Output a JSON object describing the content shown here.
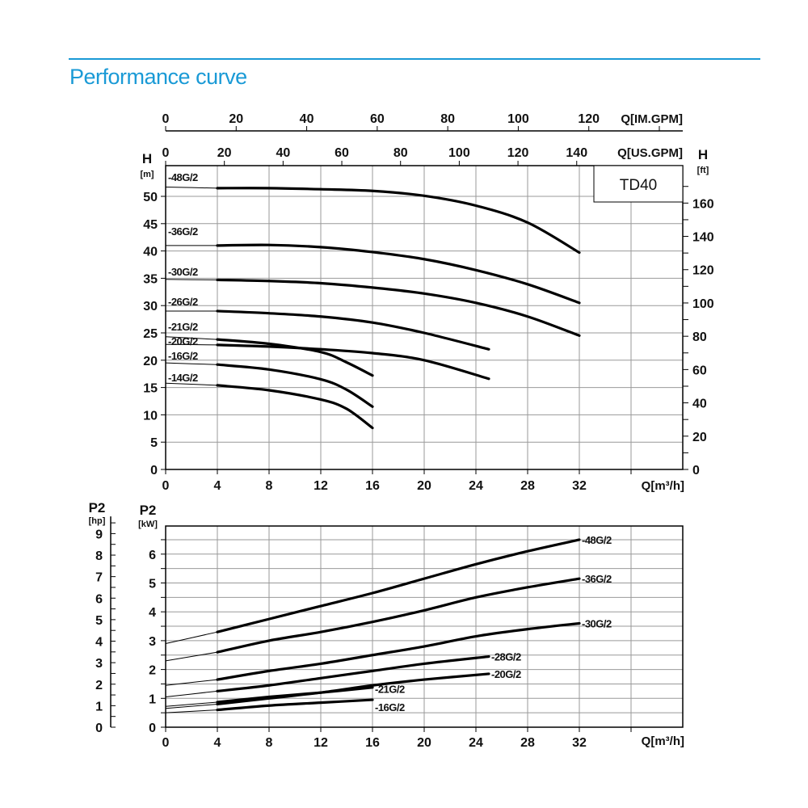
{
  "page": {
    "title": "Performance curve",
    "accent_color": "#1a9ad6"
  },
  "chart_data": [
    {
      "type": "line",
      "title": "TD40",
      "xlabel": "Q[m³/h]",
      "ylabel": "H",
      "ylabel_unit": "[m]",
      "y2label": "H",
      "y2label_unit": "[ft]",
      "xlim": [
        0,
        40
      ],
      "ylim": [
        0,
        55
      ],
      "x_ticks": [
        0,
        4,
        8,
        12,
        16,
        20,
        24,
        28,
        32
      ],
      "y_ticks": [
        0,
        5,
        10,
        15,
        20,
        25,
        30,
        35,
        40,
        45,
        50
      ],
      "y2_ticks": [
        0,
        20,
        40,
        60,
        80,
        100,
        120,
        140,
        160
      ],
      "top_axis_us": {
        "label": "Q[US.GPM]",
        "ticks": [
          0,
          20,
          40,
          60,
          80,
          100,
          120,
          140
        ]
      },
      "top_axis_im": {
        "label": "Q[IM.GPM]",
        "ticks": [
          0,
          20,
          40,
          60,
          80,
          100,
          120
        ]
      },
      "grid": true,
      "series": [
        {
          "name": "-48G/2",
          "x": [
            0,
            4,
            8,
            12,
            16,
            20,
            24,
            28,
            32
          ],
          "y": [
            51.7,
            51.5,
            51.5,
            51.3,
            51.0,
            50.1,
            48.3,
            45.2,
            39.7
          ]
        },
        {
          "name": "-36G/2",
          "x": [
            0,
            4,
            8,
            12,
            16,
            20,
            24,
            28,
            32
          ],
          "y": [
            41.0,
            41.0,
            41.1,
            40.7,
            39.8,
            38.5,
            36.5,
            33.9,
            30.5
          ]
        },
        {
          "name": "-30G/2",
          "x": [
            0,
            4,
            8,
            12,
            16,
            20,
            24,
            28,
            32
          ],
          "y": [
            34.8,
            34.7,
            34.5,
            34.1,
            33.3,
            32.2,
            30.5,
            28.0,
            24.5
          ]
        },
        {
          "name": "-26G/2",
          "x": [
            0,
            4,
            8,
            12,
            16,
            20,
            25
          ],
          "y": [
            29.0,
            29.0,
            28.6,
            28.0,
            26.9,
            25.0,
            22.0
          ]
        },
        {
          "name": "-21G/2",
          "x": [
            0,
            4,
            8,
            12,
            14,
            16
          ],
          "y": [
            24.3,
            23.8,
            23.0,
            21.5,
            19.6,
            17.2
          ]
        },
        {
          "name": "-20G/2",
          "x": [
            0,
            4,
            8,
            12,
            16,
            20,
            25
          ],
          "y": [
            22.9,
            22.8,
            22.5,
            22.0,
            21.3,
            20.0,
            16.6
          ]
        },
        {
          "name": "-16G/2",
          "x": [
            0,
            4,
            8,
            12,
            14,
            16
          ],
          "y": [
            19.5,
            19.2,
            18.3,
            16.5,
            14.6,
            11.5
          ]
        },
        {
          "name": "-14G/2",
          "x": [
            0,
            4,
            8,
            12,
            14,
            16
          ],
          "y": [
            15.8,
            15.4,
            14.5,
            12.8,
            11.1,
            7.6
          ]
        }
      ]
    },
    {
      "type": "line",
      "xlabel": "Q[m³/h]",
      "ylabel": "P2",
      "ylabel_unit": "[kW]",
      "y2label": "P2",
      "y2label_unit": "[hp]",
      "xlim": [
        0,
        40
      ],
      "ylim": [
        0,
        7
      ],
      "x_ticks": [
        0,
        4,
        8,
        12,
        16,
        20,
        24,
        28,
        32
      ],
      "y_ticks": [
        0,
        1,
        2,
        3,
        4,
        5,
        6
      ],
      "y2_ticks": [
        0,
        1,
        2,
        3,
        4,
        5,
        6,
        7,
        8,
        9
      ],
      "grid": true,
      "series": [
        {
          "name": "-48G/2",
          "x": [
            0,
            4,
            8,
            12,
            16,
            20,
            24,
            28,
            32
          ],
          "y": [
            2.9,
            3.3,
            3.75,
            4.2,
            4.65,
            5.15,
            5.65,
            6.1,
            6.5
          ]
        },
        {
          "name": "-36G/2",
          "x": [
            0,
            4,
            8,
            12,
            16,
            20,
            24,
            28,
            32
          ],
          "y": [
            2.3,
            2.6,
            3.0,
            3.3,
            3.65,
            4.05,
            4.5,
            4.85,
            5.15
          ]
        },
        {
          "name": "-30G/2",
          "x": [
            0,
            4,
            8,
            12,
            16,
            20,
            24,
            28,
            32
          ],
          "y": [
            1.45,
            1.65,
            1.95,
            2.2,
            2.5,
            2.8,
            3.15,
            3.4,
            3.6
          ]
        },
        {
          "name": "-28G/2",
          "x": [
            0,
            4,
            8,
            12,
            16,
            20,
            25
          ],
          "y": [
            1.05,
            1.25,
            1.45,
            1.7,
            1.95,
            2.2,
            2.45
          ]
        },
        {
          "name": "-20G/2",
          "x": [
            0,
            4,
            8,
            12,
            16,
            20,
            25
          ],
          "y": [
            0.65,
            0.8,
            1.0,
            1.2,
            1.45,
            1.65,
            1.85
          ]
        },
        {
          "name": "-21G/2",
          "x": [
            0,
            4,
            8,
            12,
            16
          ],
          "y": [
            0.72,
            0.87,
            1.05,
            1.2,
            1.38
          ]
        },
        {
          "name": "-16G/2",
          "x": [
            0,
            4,
            8,
            12,
            16
          ],
          "y": [
            0.5,
            0.6,
            0.75,
            0.85,
            0.95
          ]
        }
      ]
    }
  ]
}
